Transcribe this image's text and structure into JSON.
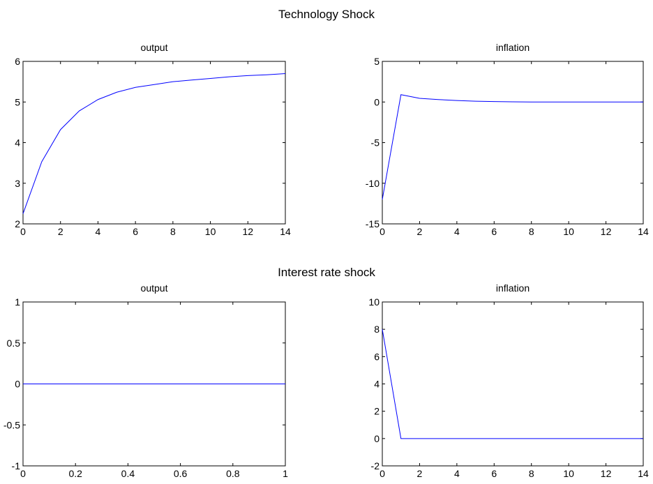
{
  "figure": {
    "section_titles": [
      "Technology Shock",
      "Interest rate shock"
    ]
  },
  "chart_data": [
    {
      "type": "line",
      "title": "output",
      "xlabel": "",
      "ylabel": "",
      "xlim": [
        0,
        14
      ],
      "ylim": [
        2,
        6
      ],
      "xticks": [
        0,
        2,
        4,
        6,
        8,
        10,
        12,
        14
      ],
      "yticks": [
        2,
        3,
        4,
        5,
        6
      ],
      "grid": false,
      "line_color": "#0000ff",
      "series": [
        {
          "x": [
            0,
            1,
            2,
            3,
            4,
            5,
            6,
            7,
            8,
            9,
            10,
            11,
            12,
            13,
            14
          ],
          "values": [
            2.25,
            3.53,
            4.32,
            4.78,
            5.06,
            5.24,
            5.36,
            5.43,
            5.5,
            5.54,
            5.58,
            5.62,
            5.65,
            5.67,
            5.7
          ]
        }
      ]
    },
    {
      "type": "line",
      "title": "inflation",
      "xlabel": "",
      "ylabel": "",
      "xlim": [
        0,
        14
      ],
      "ylim": [
        -15,
        5
      ],
      "xticks": [
        0,
        2,
        4,
        6,
        8,
        10,
        12,
        14
      ],
      "yticks": [
        -15,
        -10,
        -5,
        0,
        5
      ],
      "grid": false,
      "line_color": "#0000ff",
      "series": [
        {
          "x": [
            0,
            1,
            2,
            3,
            4,
            5,
            6,
            7,
            8,
            9,
            10,
            11,
            12,
            13,
            14
          ],
          "values": [
            -12.0,
            0.9,
            0.45,
            0.3,
            0.18,
            0.1,
            0.05,
            0.02,
            0.0,
            0.0,
            0.0,
            0.0,
            0.0,
            0.0,
            0.0
          ]
        }
      ]
    },
    {
      "type": "line",
      "title": "output",
      "xlabel": "",
      "ylabel": "",
      "xlim": [
        0,
        1
      ],
      "ylim": [
        -1,
        1
      ],
      "xticks": [
        0,
        0.2,
        0.4,
        0.6,
        0.8,
        1
      ],
      "yticks": [
        -1,
        -0.5,
        0,
        0.5,
        1
      ],
      "grid": false,
      "line_color": "#0000ff",
      "series": [
        {
          "x": [
            0,
            1
          ],
          "values": [
            0,
            0
          ]
        }
      ]
    },
    {
      "type": "line",
      "title": "inflation",
      "xlabel": "",
      "ylabel": "",
      "xlim": [
        0,
        14
      ],
      "ylim": [
        -2,
        10
      ],
      "xticks": [
        0,
        2,
        4,
        6,
        8,
        10,
        12,
        14
      ],
      "yticks": [
        -2,
        0,
        2,
        4,
        6,
        8,
        10
      ],
      "grid": false,
      "line_color": "#0000ff",
      "series": [
        {
          "x": [
            0,
            1,
            2,
            3,
            4,
            5,
            6,
            7,
            8,
            9,
            10,
            11,
            12,
            13,
            14
          ],
          "values": [
            8.0,
            0.0,
            0.0,
            0.0,
            0.0,
            0.0,
            0.0,
            0.0,
            0.0,
            0.0,
            0.0,
            0.0,
            0.0,
            0.0,
            0.0
          ]
        }
      ]
    }
  ]
}
